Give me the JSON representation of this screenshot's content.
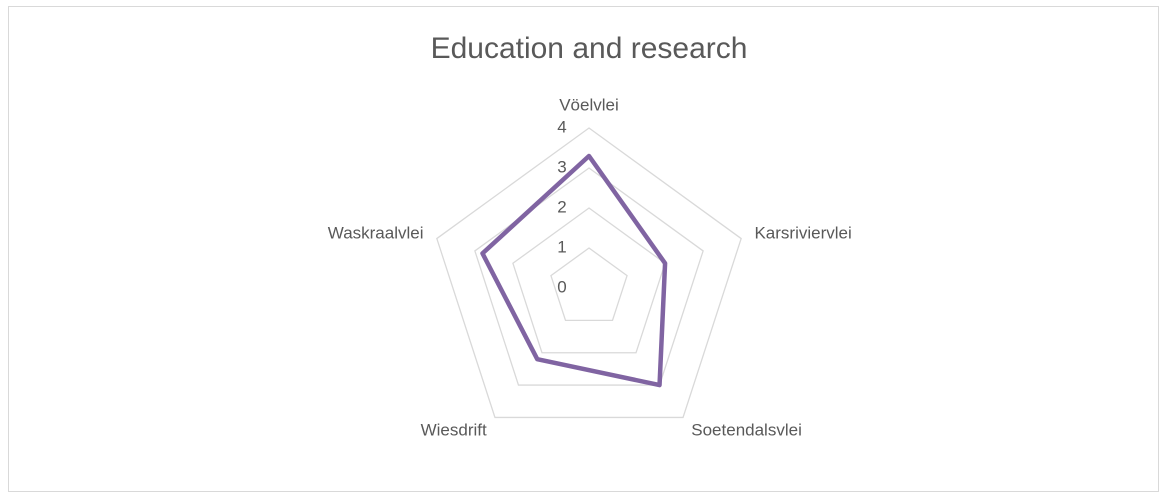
{
  "chart_data": {
    "type": "radar",
    "title": "Education and research",
    "categories": [
      "Vöelvlei",
      "Karsriviervlei",
      "Soetendalsvlei",
      "Wiesdrift",
      "Waskraalvlei"
    ],
    "series": [
      {
        "name": "Education and research",
        "color": "#8064a2",
        "values": [
          3.3,
          2.0,
          3.0,
          2.2,
          2.8
        ]
      }
    ],
    "ylim": [
      0,
      4
    ],
    "yticks": [
      0,
      1,
      2,
      3,
      4
    ],
    "grid": true
  }
}
